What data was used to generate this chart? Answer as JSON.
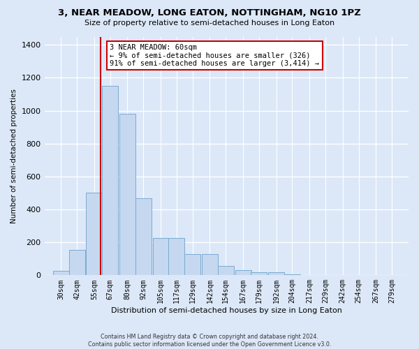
{
  "title": "3, NEAR MEADOW, LONG EATON, NOTTINGHAM, NG10 1PZ",
  "subtitle": "Size of property relative to semi-detached houses in Long Eaton",
  "xlabel": "Distribution of semi-detached houses by size in Long Eaton",
  "ylabel": "Number of semi-detached properties",
  "bar_color": "#c5d8f0",
  "bar_edge_color": "#7aaad0",
  "annotation_box_color": "#cc0000",
  "vline_color": "#cc0000",
  "background_color": "#dce8f8",
  "plot_bg_color": "#dce8f8",
  "footer_line1": "Contains HM Land Registry data © Crown copyright and database right 2024.",
  "footer_line2": "Contains public sector information licensed under the Open Government Licence v3.0.",
  "annotation_title": "3 NEAR MEADOW: 60sqm",
  "annotation_line1": "← 9% of semi-detached houses are smaller (326)",
  "annotation_line2": "91% of semi-detached houses are larger (3,414) →",
  "property_size_sqm": 60,
  "categories": [
    "30sqm",
    "42sqm",
    "55sqm",
    "67sqm",
    "80sqm",
    "92sqm",
    "105sqm",
    "117sqm",
    "129sqm",
    "142sqm",
    "154sqm",
    "167sqm",
    "179sqm",
    "192sqm",
    "204sqm",
    "217sqm",
    "229sqm",
    "242sqm",
    "254sqm",
    "267sqm",
    "279sqm"
  ],
  "values": [
    25,
    155,
    500,
    1150,
    980,
    470,
    225,
    225,
    130,
    130,
    55,
    30,
    20,
    18,
    5,
    2,
    1,
    1,
    0,
    0,
    0
  ],
  "ylim": [
    0,
    1450
  ],
  "yticks": [
    0,
    200,
    400,
    600,
    800,
    1000,
    1200,
    1400
  ],
  "n_bins": 21
}
